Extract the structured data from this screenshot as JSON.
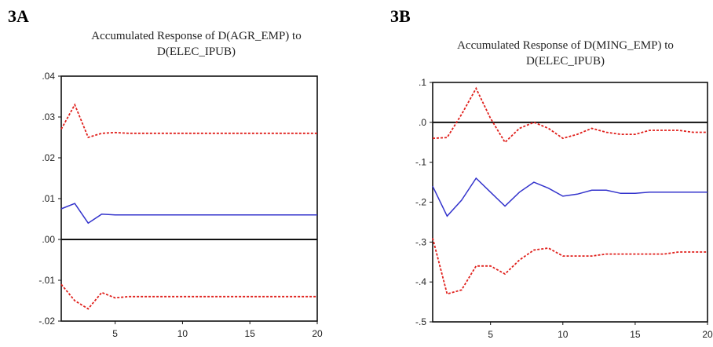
{
  "panels": [
    {
      "label": "3A",
      "title_line1": "Accumulated Response of D(AGR_EMP) to",
      "title_line2": "D(ELEC_IPUB)",
      "chart_data": {
        "type": "line",
        "xlim": [
          1,
          20
        ],
        "ylim": [
          -0.02,
          0.04
        ],
        "x_ticks": [
          5,
          10,
          15,
          20
        ],
        "x_tick_labels": [
          "5",
          "10",
          "15",
          "20"
        ],
        "y_ticks": [
          0.04,
          0.03,
          0.02,
          0.01,
          0.0,
          -0.01,
          -0.02
        ],
        "y_tick_labels": [
          ".04",
          ".03",
          ".02",
          ".01",
          ".00",
          "-.01",
          "-.02"
        ],
        "zero_line": true,
        "grid": false,
        "series": [
          {
            "color": "#e0201c",
            "style": "dashed",
            "x": [
              1,
              2,
              3,
              4,
              5,
              6,
              7,
              8,
              9,
              10,
              11,
              12,
              13,
              14,
              15,
              16,
              17,
              18,
              19,
              20
            ],
            "y": [
              0.027,
              0.033,
              0.025,
              0.026,
              0.0262,
              0.026,
              0.026,
              0.026,
              0.026,
              0.026,
              0.026,
              0.026,
              0.026,
              0.026,
              0.026,
              0.026,
              0.026,
              0.026,
              0.026,
              0.026
            ]
          },
          {
            "color": "#3333cc",
            "style": "solid",
            "x": [
              1,
              2,
              3,
              4,
              5,
              6,
              7,
              8,
              9,
              10,
              11,
              12,
              13,
              14,
              15,
              16,
              17,
              18,
              19,
              20
            ],
            "y": [
              0.0075,
              0.0088,
              0.004,
              0.0062,
              0.006,
              0.006,
              0.006,
              0.006,
              0.006,
              0.006,
              0.006,
              0.006,
              0.006,
              0.006,
              0.006,
              0.006,
              0.006,
              0.006,
              0.006,
              0.006
            ]
          },
          {
            "color": "#e0201c",
            "style": "dashed",
            "x": [
              1,
              2,
              3,
              4,
              5,
              6,
              7,
              8,
              9,
              10,
              11,
              12,
              13,
              14,
              15,
              16,
              17,
              18,
              19,
              20
            ],
            "y": [
              -0.011,
              -0.015,
              -0.017,
              -0.013,
              -0.0143,
              -0.014,
              -0.014,
              -0.014,
              -0.014,
              -0.014,
              -0.014,
              -0.014,
              -0.014,
              -0.014,
              -0.014,
              -0.014,
              -0.014,
              -0.014,
              -0.014,
              -0.014
            ]
          }
        ]
      }
    },
    {
      "label": "3B",
      "title_line1": "Accumulated Response of D(MING_EMP) to",
      "title_line2": "D(ELEC_IPUB)",
      "chart_data": {
        "type": "line",
        "xlim": [
          1,
          20
        ],
        "ylim": [
          -0.5,
          0.1
        ],
        "x_ticks": [
          5,
          10,
          15,
          20
        ],
        "x_tick_labels": [
          "5",
          "10",
          "15",
          "20"
        ],
        "y_ticks": [
          0.1,
          0.0,
          -0.1,
          -0.2,
          -0.3,
          -0.4,
          -0.5
        ],
        "y_tick_labels": [
          ".1",
          ".0",
          "-.1",
          "-.2",
          "-.3",
          "-.4",
          "-.5"
        ],
        "zero_line": true,
        "grid": false,
        "series": [
          {
            "color": "#e0201c",
            "style": "dashed",
            "x": [
              1,
              2,
              3,
              4,
              5,
              6,
              7,
              8,
              9,
              10,
              11,
              12,
              13,
              14,
              15,
              16,
              17,
              18,
              19,
              20
            ],
            "y": [
              -0.04,
              -0.038,
              0.02,
              0.085,
              0.01,
              -0.05,
              -0.015,
              0.0,
              -0.015,
              -0.04,
              -0.03,
              -0.015,
              -0.025,
              -0.03,
              -0.03,
              -0.02,
              -0.02,
              -0.02,
              -0.025,
              -0.025
            ]
          },
          {
            "color": "#3333cc",
            "style": "solid",
            "x": [
              1,
              2,
              3,
              4,
              5,
              6,
              7,
              8,
              9,
              10,
              11,
              12,
              13,
              14,
              15,
              16,
              17,
              18,
              19,
              20
            ],
            "y": [
              -0.16,
              -0.235,
              -0.195,
              -0.14,
              -0.175,
              -0.21,
              -0.175,
              -0.15,
              -0.165,
              -0.185,
              -0.18,
              -0.17,
              -0.17,
              -0.178,
              -0.178,
              -0.175,
              -0.175,
              -0.175,
              -0.175,
              -0.175
            ]
          },
          {
            "color": "#e0201c",
            "style": "dashed",
            "x": [
              1,
              2,
              3,
              4,
              5,
              6,
              7,
              8,
              9,
              10,
              11,
              12,
              13,
              14,
              15,
              16,
              17,
              18,
              19,
              20
            ],
            "y": [
              -0.29,
              -0.43,
              -0.42,
              -0.36,
              -0.36,
              -0.38,
              -0.345,
              -0.32,
              -0.315,
              -0.335,
              -0.335,
              -0.335,
              -0.33,
              -0.33,
              -0.33,
              -0.33,
              -0.33,
              -0.325,
              -0.325,
              -0.325
            ]
          }
        ]
      }
    }
  ]
}
